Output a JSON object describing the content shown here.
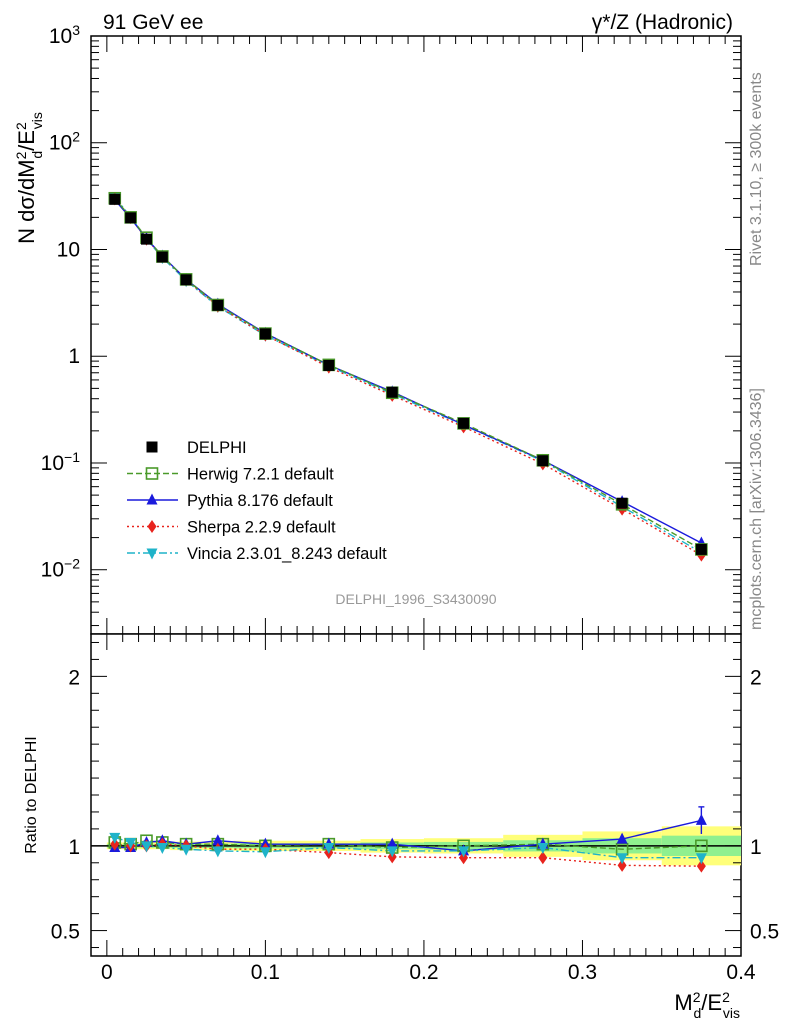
{
  "header": {
    "left": "91 GeV ee",
    "right": "γ*/Z (Hadronic)"
  },
  "side_labels": {
    "rivet": "Rivet 3.1.10, ≥ 300k events",
    "mcplots": "mcplots.cern.ch [arXiv:1306.3436]"
  },
  "watermark": "DELPHI_1996_S3430090",
  "chart_data": [
    {
      "type": "line",
      "panel": "main",
      "yscale": "log",
      "ylabel": "N dσ/dM²d/E²vis",
      "xlim": [
        -0.01,
        0.4
      ],
      "ylim": [
        0.0025,
        1000
      ],
      "yticks": [
        {
          "v": 0.01,
          "label": "10",
          "exp": "−2"
        },
        {
          "v": 0.1,
          "label": "10",
          "exp": "−1"
        },
        {
          "v": 1,
          "label": "1",
          "exp": ""
        },
        {
          "v": 10,
          "label": "10",
          "exp": ""
        },
        {
          "v": 100,
          "label": "10",
          "exp": "2"
        },
        {
          "v": 1000,
          "label": "10",
          "exp": "3"
        }
      ],
      "x": [
        0.005,
        0.015,
        0.025,
        0.035,
        0.05,
        0.07,
        0.1,
        0.14,
        0.18,
        0.225,
        0.275,
        0.325,
        0.375
      ],
      "series": [
        {
          "key": "data",
          "name": "DELPHI",
          "color": "#000000",
          "marker": "square-filled",
          "dash": "",
          "line": false,
          "values": [
            29.5,
            19.8,
            12.5,
            8.5,
            5.2,
            3.0,
            1.62,
            0.82,
            0.46,
            0.235,
            0.105,
            0.042,
            0.0155
          ]
        },
        {
          "key": "herwig",
          "name": "Herwig 7.2.1 default",
          "color": "#4a9a2a",
          "marker": "square-open",
          "dash": "6,3",
          "values": [
            30.2,
            20.0,
            12.9,
            8.6,
            5.25,
            3.02,
            1.63,
            0.83,
            0.455,
            0.235,
            0.106,
            0.041,
            0.0155
          ]
        },
        {
          "key": "pythia",
          "name": "Pythia 8.176 default",
          "color": "#1a1adc",
          "marker": "triangle-up",
          "dash": "",
          "values": [
            29.2,
            19.6,
            12.7,
            8.7,
            5.25,
            3.08,
            1.64,
            0.825,
            0.465,
            0.228,
            0.106,
            0.0435,
            0.0178
          ]
        },
        {
          "key": "sherpa",
          "name": "Sherpa 2.2.9 default",
          "color": "#e8231d",
          "marker": "diamond",
          "dash": "2,3",
          "values": [
            29.8,
            19.9,
            12.5,
            8.6,
            5.2,
            2.95,
            1.58,
            0.79,
            0.43,
            0.218,
            0.098,
            0.037,
            0.0137
          ]
        },
        {
          "key": "vincia",
          "name": "Vincia 2.3.01_8.243 default",
          "color": "#1fb3c9",
          "marker": "triangle-down",
          "dash": "8,3,2,3",
          "values": [
            31.0,
            20.2,
            12.5,
            8.4,
            5.1,
            2.92,
            1.57,
            0.81,
            0.445,
            0.227,
            0.104,
            0.039,
            0.0145
          ]
        }
      ],
      "legend": "middle-left"
    },
    {
      "type": "line",
      "panel": "ratio",
      "ylabel": "Ratio to DELPHI",
      "xlabel": "M²d/E²vis",
      "xlim": [
        -0.01,
        0.4
      ],
      "ylim": [
        0.35,
        2.25
      ],
      "yticks": [
        {
          "v": 0.5,
          "label": "0.5"
        },
        {
          "v": 1,
          "label": "1"
        },
        {
          "v": 2,
          "label": "2"
        }
      ],
      "xticks": [
        {
          "v": 0,
          "label": "0"
        },
        {
          "v": 0.1,
          "label": "0.1"
        },
        {
          "v": 0.2,
          "label": "0.2"
        },
        {
          "v": 0.3,
          "label": "0.3"
        },
        {
          "v": 0.4,
          "label": "0.4"
        }
      ],
      "x": [
        0.005,
        0.015,
        0.025,
        0.035,
        0.05,
        0.07,
        0.1,
        0.14,
        0.18,
        0.225,
        0.275,
        0.325,
        0.375
      ],
      "bins": [
        [
          0.0,
          0.01
        ],
        [
          0.01,
          0.02
        ],
        [
          0.02,
          0.03
        ],
        [
          0.03,
          0.04
        ],
        [
          0.04,
          0.06
        ],
        [
          0.06,
          0.08
        ],
        [
          0.08,
          0.12
        ],
        [
          0.12,
          0.16
        ],
        [
          0.16,
          0.2
        ],
        [
          0.2,
          0.25
        ],
        [
          0.25,
          0.3
        ],
        [
          0.3,
          0.35
        ],
        [
          0.35,
          0.4
        ]
      ],
      "band_yellow": [
        0.02,
        0.02,
        0.02,
        0.02,
        0.025,
        0.025,
        0.03,
        0.03,
        0.04,
        0.045,
        0.065,
        0.085,
        0.115
      ],
      "band_green": [
        0.01,
        0.01,
        0.01,
        0.01,
        0.012,
        0.012,
        0.015,
        0.015,
        0.02,
        0.023,
        0.033,
        0.045,
        0.06
      ],
      "series": [
        {
          "key": "herwig",
          "color": "#4a9a2a",
          "marker": "square-open",
          "dash": "6,3",
          "values": [
            1.02,
            1.01,
            1.03,
            1.02,
            1.01,
            1.01,
            1.0,
            1.01,
            0.99,
            1.0,
            1.01,
            0.98,
            1.0
          ]
        },
        {
          "key": "pythia",
          "color": "#1a1adc",
          "marker": "triangle-up",
          "dash": "",
          "values": [
            0.99,
            0.99,
            1.02,
            1.03,
            1.01,
            1.03,
            1.01,
            1.01,
            1.01,
            0.97,
            1.01,
            1.04,
            1.15
          ],
          "err_last": 0.08
        },
        {
          "key": "sherpa",
          "color": "#e8231d",
          "marker": "diamond",
          "dash": "2,3",
          "values": [
            1.01,
            1.0,
            1.0,
            1.01,
            1.0,
            0.98,
            0.98,
            0.96,
            0.935,
            0.93,
            0.93,
            0.885,
            0.88
          ]
        },
        {
          "key": "vincia",
          "color": "#1fb3c9",
          "marker": "triangle-down",
          "dash": "8,3,2,3",
          "values": [
            1.05,
            1.02,
            1.0,
            0.99,
            0.98,
            0.97,
            0.965,
            0.99,
            0.97,
            0.97,
            0.99,
            0.93,
            0.93
          ]
        }
      ]
    }
  ]
}
